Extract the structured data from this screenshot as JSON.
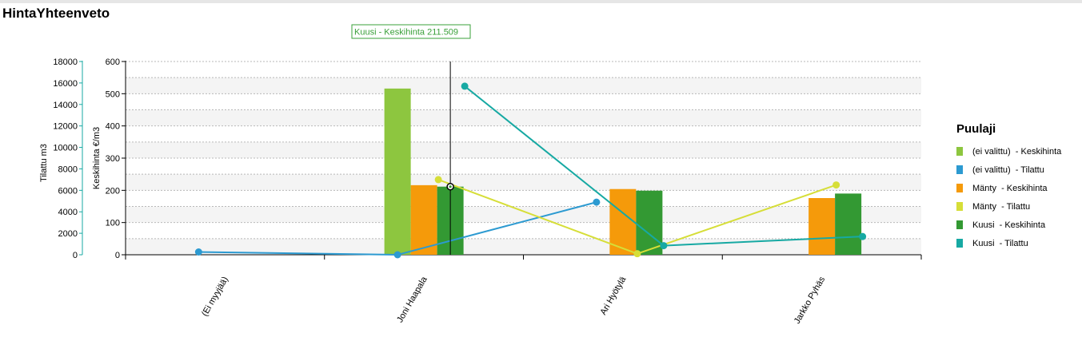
{
  "page": {
    "title": "HintaYhteenveto"
  },
  "tooltip": {
    "text": "Kuusi  - Keskihinta  211.509",
    "color": "#3aa03a"
  },
  "legend": {
    "title": "Puulaji",
    "items": [
      {
        "label": "(ei valittu)  - Keskihinta",
        "color": "#8dc63f"
      },
      {
        "label": "(ei valittu)  - Tilattu",
        "color": "#2c9ad1"
      },
      {
        "label": "Mänty  - Keskihinta",
        "color": "#f59a0a"
      },
      {
        "label": "Mänty  - Tilattu",
        "color": "#d6de38"
      },
      {
        "label": "Kuusi  - Keskihinta",
        "color": "#339933"
      },
      {
        "label": "Kuusi  - Tilattu",
        "color": "#17a9a3"
      }
    ]
  },
  "chart_data": {
    "type": "bar",
    "categories": [
      "(Ei myyjää)",
      "Joni Haapala",
      "Ari Hyötylä",
      "Jarkko Pyhäs"
    ],
    "y_left_outer": {
      "label": "Tilattu m3",
      "ylim": [
        0,
        18000
      ],
      "ticks": [
        0,
        2000,
        4000,
        6000,
        8000,
        10000,
        12000,
        14000,
        16000,
        18000
      ]
    },
    "y_left_inner": {
      "label": "Keskihinta €/m3",
      "ylim": [
        0,
        600
      ],
      "ticks": [
        0,
        100,
        200,
        300,
        400,
        500,
        600
      ]
    },
    "grid": true,
    "legend_position": "right",
    "bar_series": [
      {
        "name": "(ei valittu)  - Keskihinta",
        "color": "#8dc63f",
        "values": [
          null,
          516,
          null,
          null
        ]
      },
      {
        "name": "Mänty  - Keskihinta",
        "color": "#f59a0a",
        "values": [
          null,
          216,
          204,
          176
        ]
      },
      {
        "name": "Kuusi  - Keskihinta",
        "color": "#339933",
        "values": [
          null,
          211.509,
          199,
          190
        ]
      }
    ],
    "line_series": [
      {
        "name": "(ei valittu)  - Tilattu",
        "color": "#2c9ad1",
        "values": [
          260,
          0,
          4900,
          null
        ]
      },
      {
        "name": "Mänty  - Tilattu",
        "color": "#d6de38",
        "values": [
          null,
          7000,
          100,
          6500
        ]
      },
      {
        "name": "Kuusi  - Tilattu",
        "color": "#17a9a3",
        "values": [
          null,
          15700,
          850,
          1700
        ]
      }
    ]
  }
}
